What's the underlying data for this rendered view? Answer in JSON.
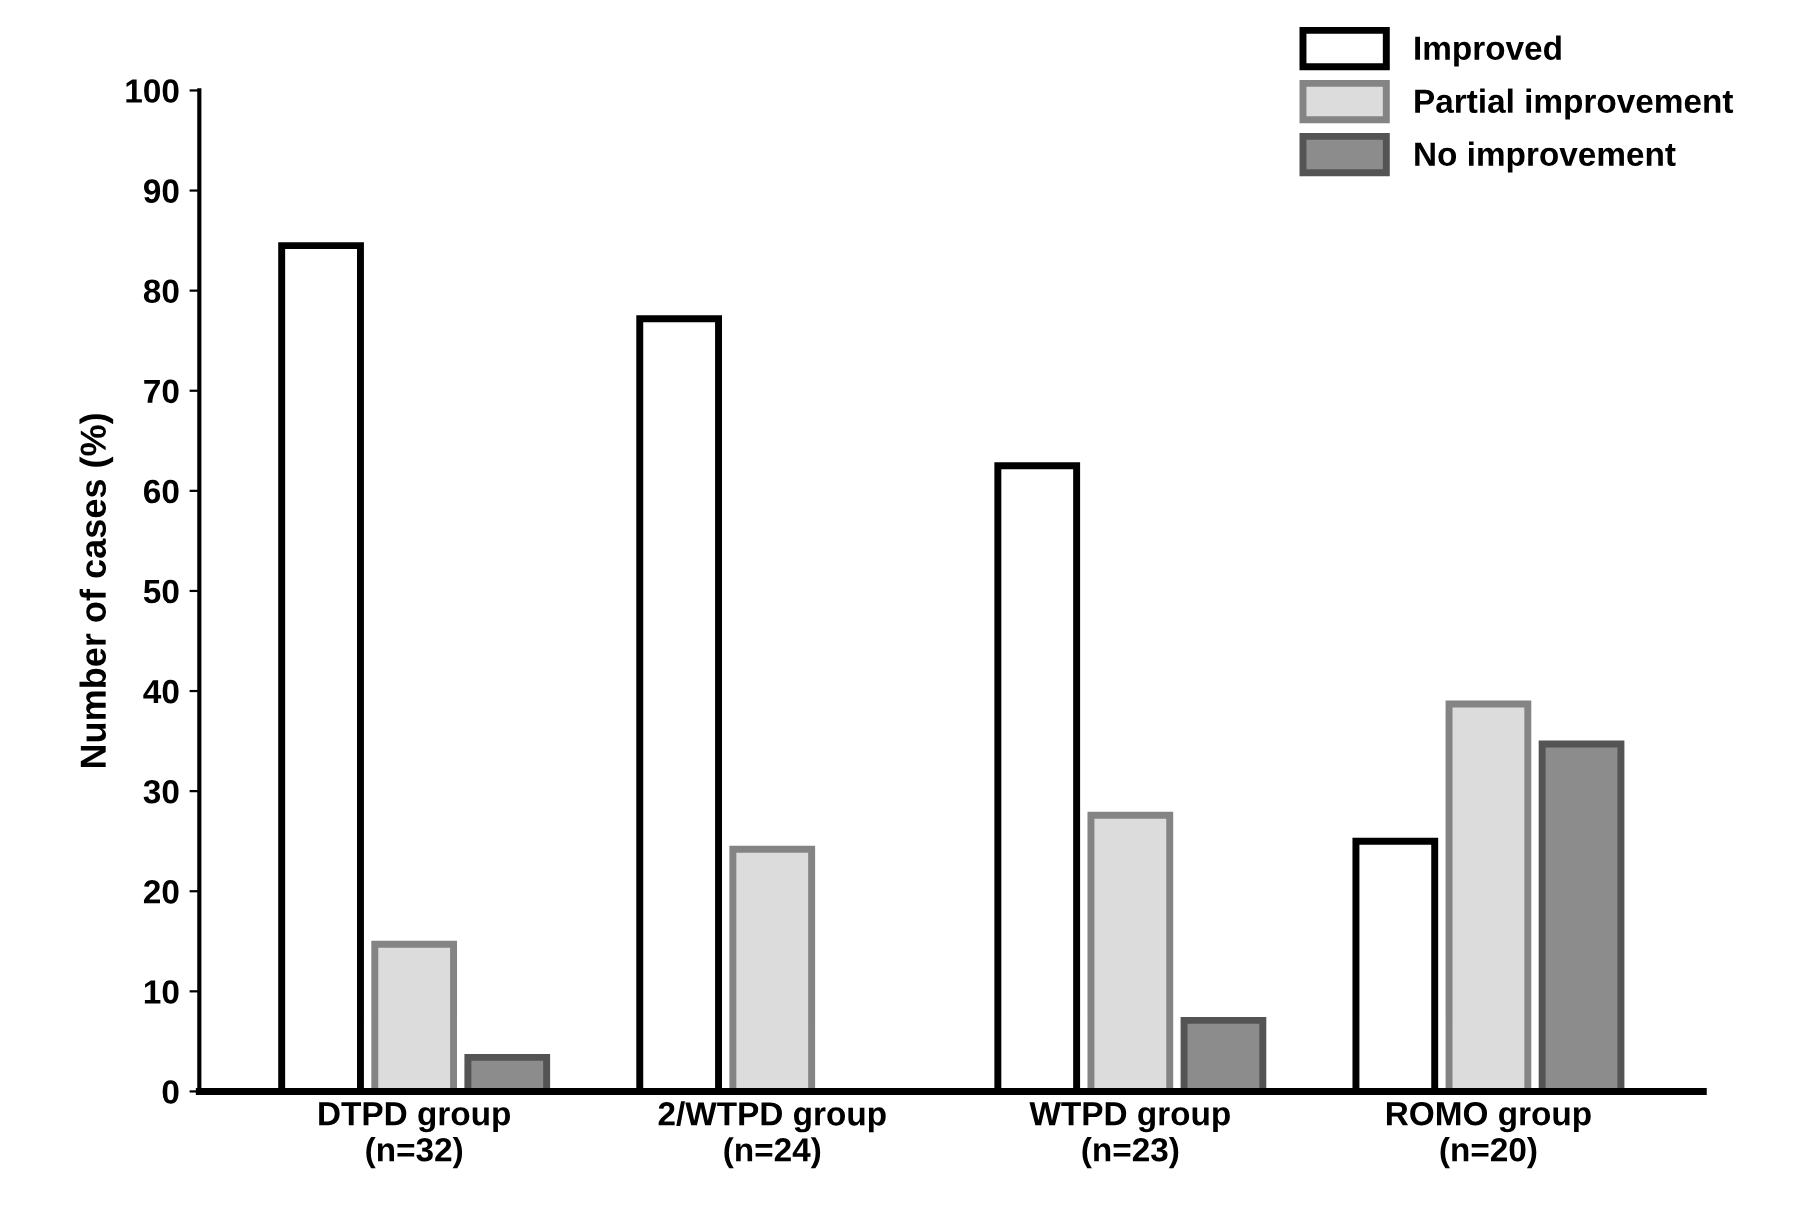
{
  "chart_data": {
    "type": "bar",
    "ylabel": "Number of cases (%)",
    "categories": [
      "DTPD group\n(n=32)",
      "2/WTPD group\n(n=24)",
      "WTPD group\n(n=23)",
      "ROMO group\n(n=20)"
    ],
    "series": [
      {
        "name": "Improved",
        "color": "#ffffff",
        "values": [
          84.5,
          77.2,
          62.5,
          25
        ]
      },
      {
        "name": "Partial improvement",
        "color": "#dcdcdc",
        "values": [
          14.7,
          24.2,
          27.6,
          38.7
        ]
      },
      {
        "name": "No improvement",
        "color": "#8c8c8c",
        "values": [
          3.4,
          null,
          7.1,
          34.7
        ]
      }
    ],
    "ylim": [
      0,
      100
    ],
    "yticks": [
      0,
      10,
      20,
      30,
      40,
      50,
      60,
      70,
      80,
      90,
      100
    ],
    "grid": false,
    "legend": "top right"
  }
}
